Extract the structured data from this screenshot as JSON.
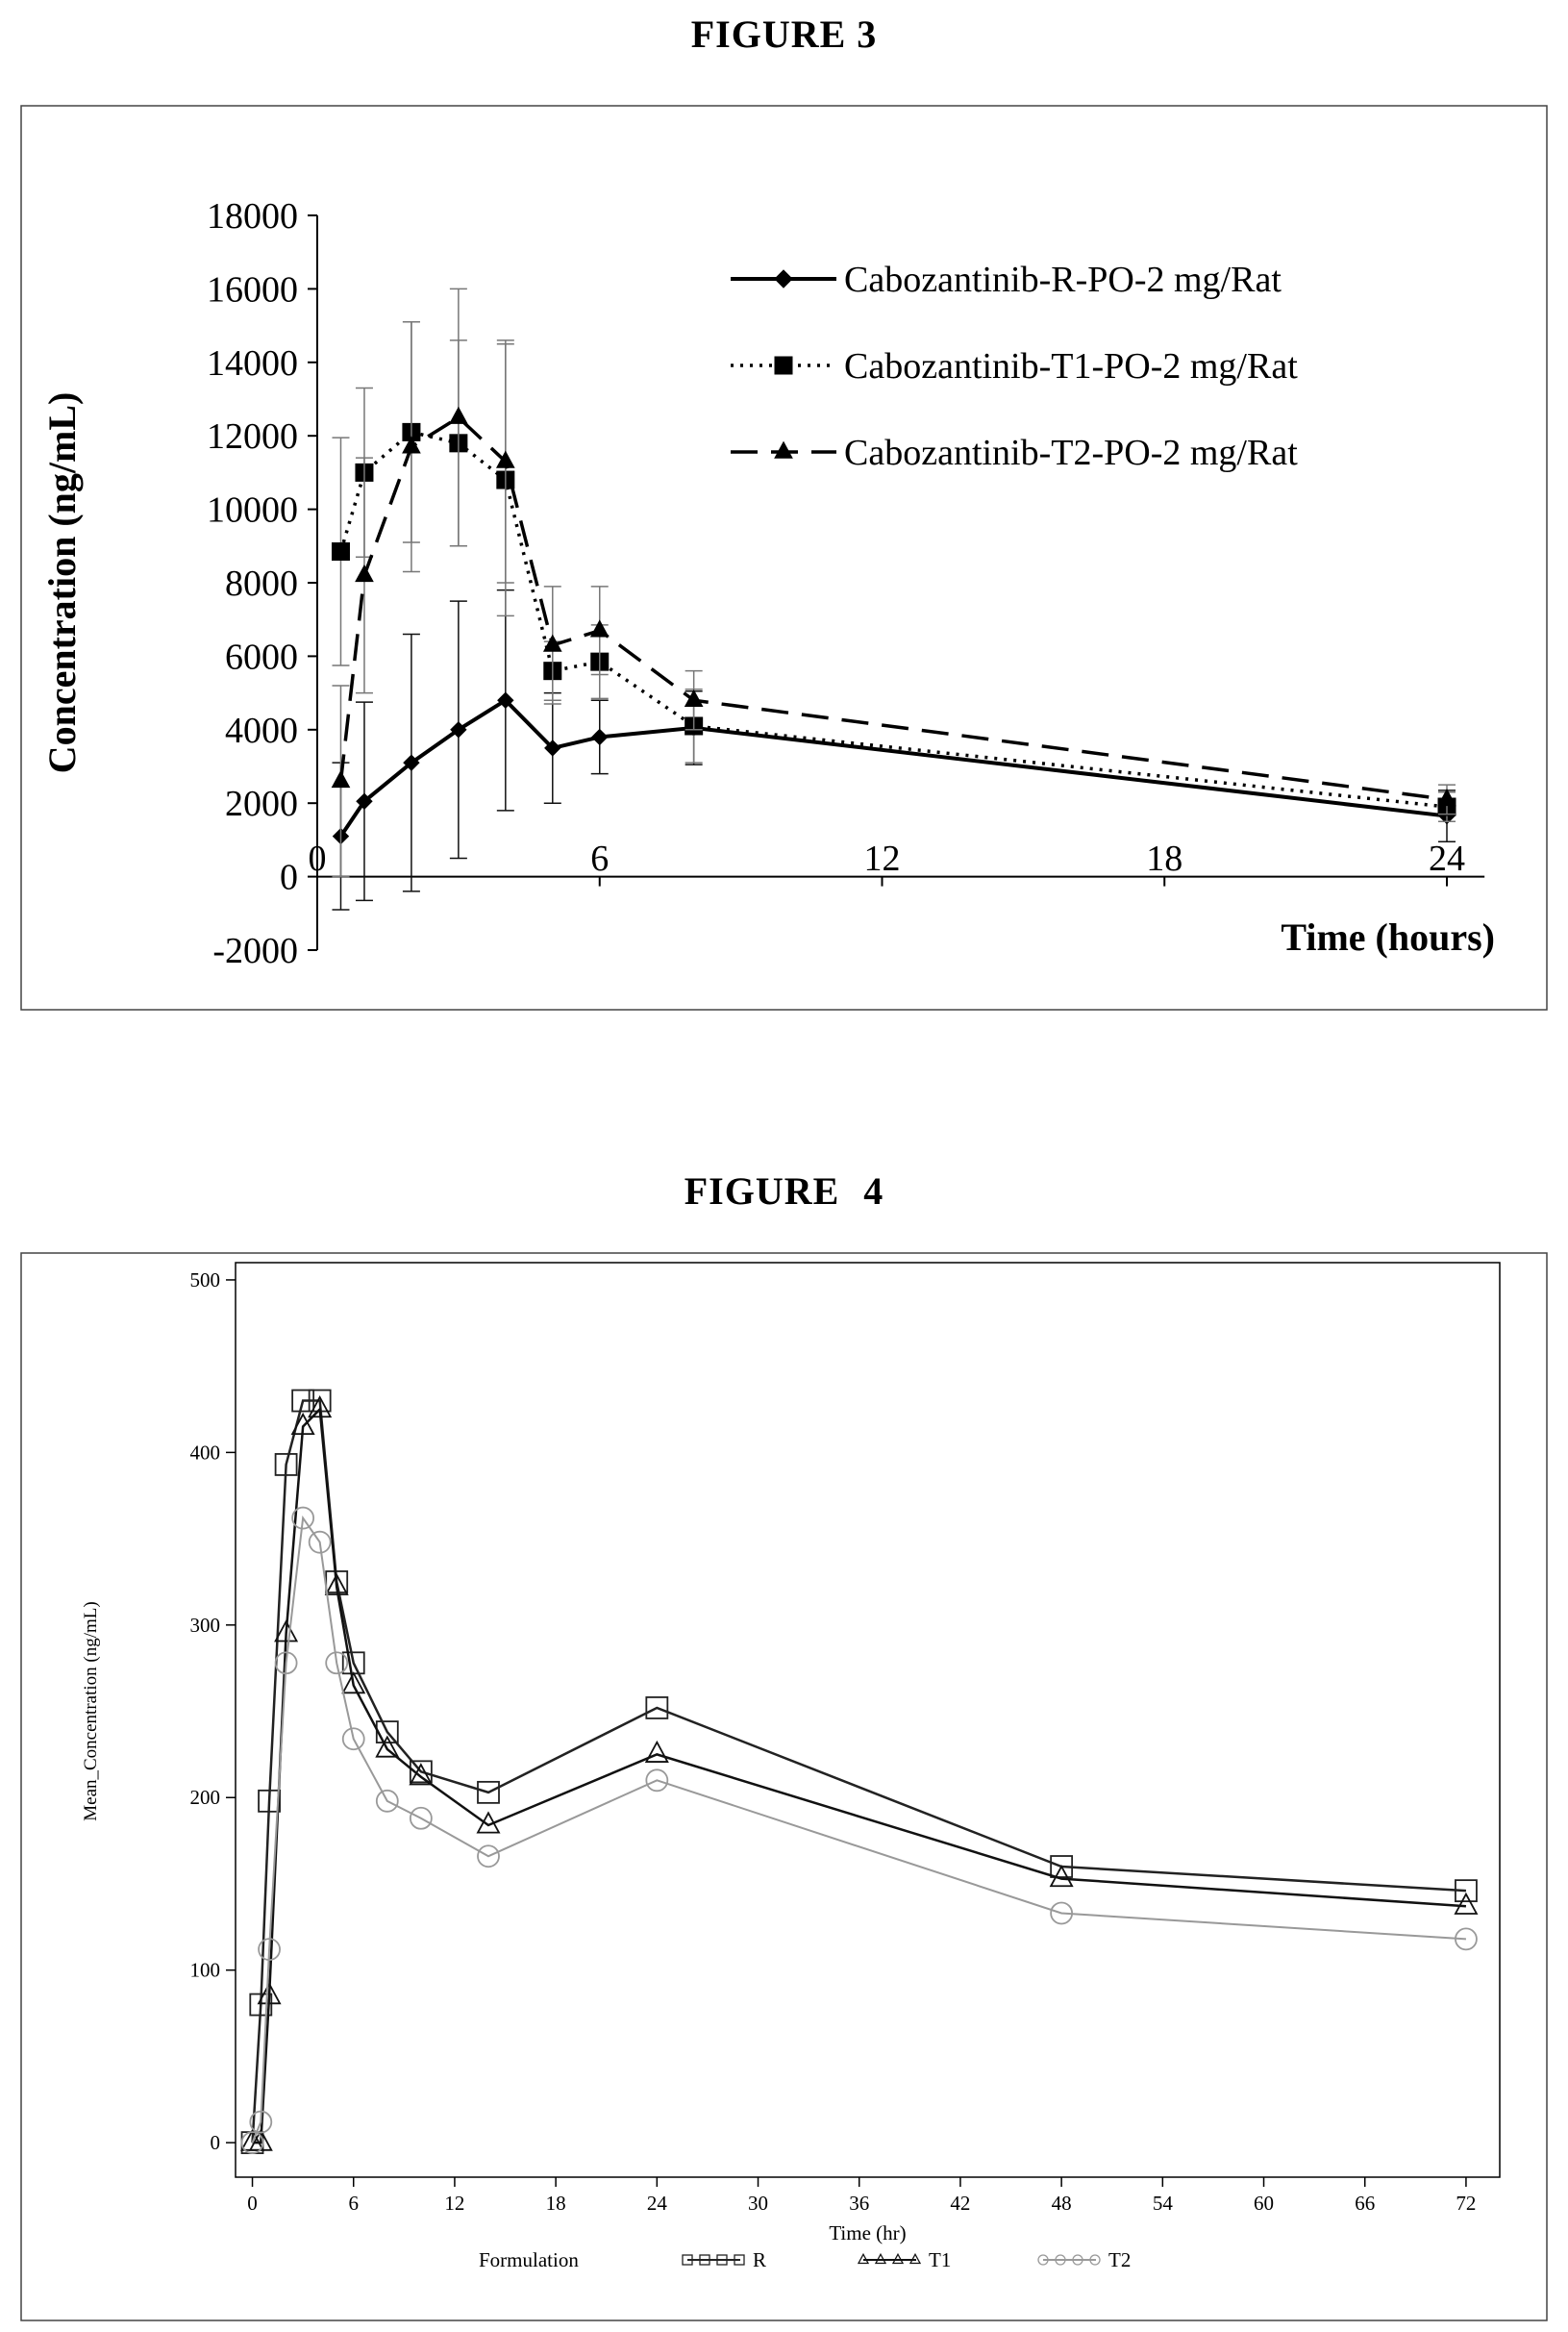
{
  "figure3": {
    "title": "FIGURE 3",
    "chart_data": {
      "type": "line",
      "xlabel": "Time (hours)",
      "ylabel": "Concentration (ng/mL)",
      "xlim": [
        0,
        26
      ],
      "ylim": [
        -2000,
        18000
      ],
      "x_ticks": [
        0,
        6,
        12,
        18,
        24
      ],
      "y_ticks": [
        -2000,
        0,
        2000,
        4000,
        6000,
        8000,
        10000,
        12000,
        14000,
        16000,
        18000
      ],
      "legend_position": "top-right",
      "grid": false,
      "error_bars": true,
      "series": [
        {
          "name": "Cabozantinib-R-PO-2 mg/Rat",
          "line_style": "solid",
          "marker": "diamond",
          "x": [
            0.5,
            1,
            2,
            3,
            4,
            5,
            6,
            8,
            24
          ],
          "y": [
            1100,
            2050,
            3100,
            4000,
            4800,
            3500,
            3800,
            4050,
            1650
          ],
          "err": [
            2000,
            2700,
            3500,
            3500,
            3000,
            1500,
            1000,
            1000,
            700
          ]
        },
        {
          "name": "Cabozantinib-T1-PO-2 mg/Rat",
          "line_style": "dotted",
          "marker": "square",
          "x": [
            0.5,
            1,
            2,
            3,
            4,
            5,
            6,
            8,
            24
          ],
          "y": [
            8850,
            11000,
            12100,
            11800,
            10800,
            5600,
            5850,
            4100,
            1900
          ],
          "err": [
            3100,
            2300,
            3000,
            2800,
            3700,
            800,
            1000,
            1000,
            400
          ]
        },
        {
          "name": "Cabozantinib-T2-PO-2 mg/Rat",
          "line_style": "dashed",
          "marker": "triangle",
          "x": [
            0.5,
            1,
            2,
            3,
            4,
            5,
            6,
            8,
            24
          ],
          "y": [
            2600,
            8200,
            11700,
            12500,
            11300,
            6300,
            6700,
            4800,
            2100
          ],
          "err": [
            2600,
            3200,
            3400,
            3500,
            3300,
            1600,
            1200,
            800,
            400
          ]
        }
      ]
    }
  },
  "figure4": {
    "title": "FIGURE   4",
    "chart_data": {
      "type": "line",
      "xlabel": "Time (hr)",
      "ylabel": "Mean_Concentration (ng/mL)",
      "xlim": [
        -1,
        74
      ],
      "ylim": [
        -20,
        510
      ],
      "x_ticks": [
        0,
        6,
        12,
        18,
        24,
        30,
        36,
        42,
        48,
        54,
        60,
        66,
        72
      ],
      "y_ticks": [
        0,
        100,
        200,
        300,
        400,
        500
      ],
      "legend_title": "Formulation",
      "legend_position": "bottom",
      "grid": false,
      "series": [
        {
          "name": "R",
          "marker": "square",
          "color": "#222222",
          "x": [
            0,
            0.5,
            1,
            2,
            3,
            4,
            5,
            6,
            8,
            10,
            14,
            24,
            48,
            72
          ],
          "y": [
            0,
            80,
            198,
            393,
            430,
            430,
            325,
            278,
            238,
            215,
            203,
            252,
            160,
            146
          ]
        },
        {
          "name": "T1",
          "marker": "triangle",
          "color": "#111111",
          "x": [
            0,
            0.5,
            1,
            2,
            3,
            4,
            5,
            6,
            8,
            10,
            14,
            24,
            48,
            72
          ],
          "y": [
            0,
            0,
            85,
            295,
            415,
            425,
            322,
            265,
            228,
            212,
            184,
            225,
            153,
            137
          ]
        },
        {
          "name": "T2",
          "marker": "circle",
          "color": "#999999",
          "x": [
            0,
            0.5,
            1,
            2,
            3,
            4,
            5,
            6,
            8,
            10,
            14,
            24,
            48,
            72
          ],
          "y": [
            0,
            12,
            112,
            278,
            362,
            348,
            278,
            234,
            198,
            188,
            166,
            210,
            133,
            118
          ]
        }
      ]
    }
  }
}
